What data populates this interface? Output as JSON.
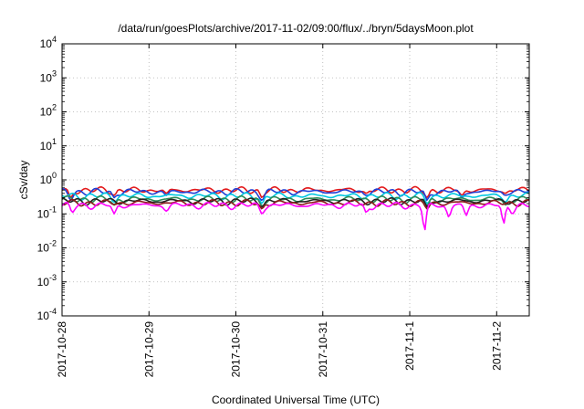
{
  "chart_data": {
    "type": "line",
    "title": "/data/run/goesPlots/archive/2017-11-02/09:00/flux/../bryn/5daysMoon.plot",
    "xlabel": "Coordinated Universal Time (UTC)",
    "ylabel": "cSv/day",
    "y_scale": "log",
    "ylim": [
      0.0001,
      10000
    ],
    "xlim": [
      "2017-10-28T00:00",
      "2017-11-02T09:00"
    ],
    "grid": true,
    "x_ticks": [
      "2017-10-28",
      "2017-10-29",
      "2017-10-30",
      "2017-10-31",
      "2017-11-1",
      "2017-11-2"
    ],
    "x_tick_dates": [
      "2017-10-28",
      "2017-10-29",
      "2017-10-30",
      "2017-10-31",
      "2017-11-01",
      "2017-11-02"
    ],
    "y_ticks": [
      {
        "base": "10",
        "exp": "-4",
        "value": 0.0001
      },
      {
        "base": "10",
        "exp": "-3",
        "value": 0.001
      },
      {
        "base": "10",
        "exp": "-2",
        "value": 0.01
      },
      {
        "base": "10",
        "exp": "-1",
        "value": 0.1
      },
      {
        "base": "10",
        "exp": "0",
        "value": 1
      },
      {
        "base": "10",
        "exp": "1",
        "value": 10
      },
      {
        "base": "10",
        "exp": "2",
        "value": 100
      },
      {
        "base": "10",
        "exp": "3",
        "value": 1000
      },
      {
        "base": "10",
        "exp": "4",
        "value": 10000
      }
    ],
    "series": [
      {
        "color": "#e31a1c",
        "baseline": 0.5,
        "dips": [
          [
            0.1,
            0.3
          ],
          [
            0.6,
            0.35
          ],
          [
            1.2,
            0.4
          ],
          [
            2.3,
            0.3
          ],
          [
            3.5,
            0.4
          ],
          [
            4.2,
            0.3
          ],
          [
            4.6,
            0.35
          ],
          [
            5.1,
            0.4
          ]
        ]
      },
      {
        "color": "#1f3fd6",
        "baseline": 0.45,
        "dips": [
          [
            0.1,
            0.25
          ],
          [
            0.6,
            0.3
          ],
          [
            1.2,
            0.35
          ],
          [
            2.3,
            0.25
          ],
          [
            3.5,
            0.35
          ],
          [
            4.2,
            0.25
          ],
          [
            4.6,
            0.3
          ],
          [
            5.1,
            0.35
          ]
        ]
      },
      {
        "color": "#00c8e0",
        "baseline": 0.34,
        "dips": [
          [
            0.6,
            0.22
          ],
          [
            2.3,
            0.2
          ],
          [
            4.2,
            0.2
          ],
          [
            5.1,
            0.22
          ]
        ]
      },
      {
        "color": "#2e8b57",
        "baseline": 0.27,
        "dips": [
          [
            0.6,
            0.18
          ],
          [
            2.3,
            0.17
          ],
          [
            4.2,
            0.17
          ],
          [
            5.1,
            0.18
          ]
        ]
      },
      {
        "color": "#222222",
        "baseline": 0.24,
        "dips": [
          [
            2.3,
            0.16
          ],
          [
            4.2,
            0.16
          ]
        ]
      },
      {
        "color": "#8b1a1a",
        "baseline": 0.21,
        "dips": [
          [
            2.3,
            0.14
          ],
          [
            4.2,
            0.14
          ]
        ]
      },
      {
        "color": "#ff00ff",
        "baseline": 0.18,
        "dips": [
          [
            0.12,
            0.11
          ],
          [
            0.6,
            0.1
          ],
          [
            1.2,
            0.12
          ],
          [
            2.3,
            0.1
          ],
          [
            3.5,
            0.11
          ],
          [
            4.17,
            0.03
          ],
          [
            4.45,
            0.08
          ],
          [
            4.65,
            0.09
          ],
          [
            5.08,
            0.05
          ],
          [
            5.18,
            0.1
          ]
        ]
      }
    ]
  }
}
